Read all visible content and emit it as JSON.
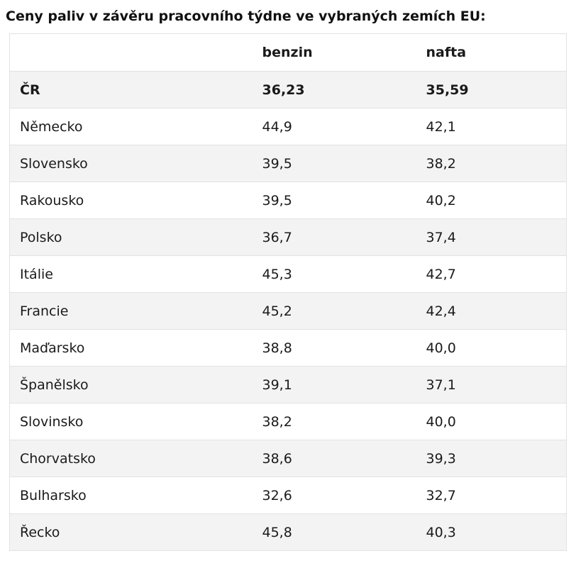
{
  "title": "Ceny paliv v závěru pracovního týdne ve vybraných zemích EU:",
  "table": {
    "headers": [
      "",
      "benzin",
      "nafta"
    ],
    "rows": [
      {
        "country": "ČR",
        "benzin": "36,23",
        "nafta": "35,59",
        "bold": true
      },
      {
        "country": "Německo",
        "benzin": "44,9",
        "nafta": "42,1"
      },
      {
        "country": "Slovensko",
        "benzin": "39,5",
        "nafta": "38,2"
      },
      {
        "country": "Rakousko",
        "benzin": "39,5",
        "nafta": "40,2"
      },
      {
        "country": "Polsko",
        "benzin": "36,7",
        "nafta": "37,4"
      },
      {
        "country": "Itálie",
        "benzin": "45,3",
        "nafta": "42,7"
      },
      {
        "country": "Francie",
        "benzin": "45,2",
        "nafta": "42,4"
      },
      {
        "country": "Maďarsko",
        "benzin": "38,8",
        "nafta": "40,0"
      },
      {
        "country": "Španělsko",
        "benzin": "39,1",
        "nafta": "37,1"
      },
      {
        "country": "Slovinsko",
        "benzin": "38,2",
        "nafta": "40,0"
      },
      {
        "country": "Chorvatsko",
        "benzin": "38,6",
        "nafta": "39,3"
      },
      {
        "country": "Bulharsko",
        "benzin": "32,6",
        "nafta": "32,7"
      },
      {
        "country": "Řecko",
        "benzin": "45,8",
        "nafta": "40,3"
      }
    ]
  },
  "colors": {
    "stripe": "#f3f3f3",
    "border": "#e2e2e2",
    "text": "#1a1a1a"
  }
}
